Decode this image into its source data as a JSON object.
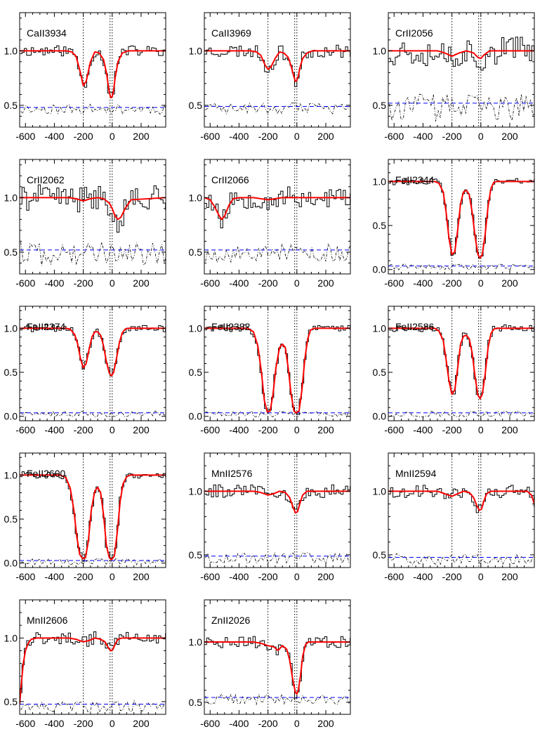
{
  "figure": {
    "colors": {
      "model": "#ff0000",
      "data": "#000000",
      "error": "#000000",
      "continuum": "#0000ff",
      "components": "#000000"
    },
    "x_ticks": [
      -600,
      -400,
      -200,
      0,
      200
    ],
    "x_tick_labels": [
      "-600",
      "-400",
      "-200",
      "0",
      "200"
    ],
    "xlim": [
      -640,
      370
    ]
  },
  "chart_data": [
    {
      "type": "line",
      "title": "CaII3934",
      "xlim": [
        -640,
        370
      ],
      "ylim": [
        0.3,
        1.35
      ],
      "y_ticks": [
        0.5,
        1.0
      ],
      "y_tick_labels": [
        "0.5",
        "1.0"
      ],
      "components": [
        -200,
        -15,
        0
      ],
      "continuum_level": 0.48,
      "model": {
        "x": [
          -640,
          -320,
          -280,
          -250,
          -220,
          -200,
          -180,
          -150,
          -120,
          -90,
          -60,
          -40,
          -20,
          -10,
          0,
          10,
          20,
          40,
          70,
          110,
          370
        ],
        "y": [
          1.0,
          1.0,
          0.99,
          0.95,
          0.8,
          0.68,
          0.72,
          0.9,
          0.99,
          0.98,
          0.92,
          0.8,
          0.62,
          0.57,
          0.58,
          0.64,
          0.75,
          0.9,
          0.98,
          1.0,
          1.0
        ]
      },
      "noise": {
        "level": 1.0,
        "amp": 0.05,
        "seed": 11,
        "step": 16
      }
    },
    {
      "type": "line",
      "title": "CaII3969",
      "xlim": [
        -640,
        370
      ],
      "ylim": [
        0.3,
        1.35
      ],
      "y_ticks": [
        0.5,
        1.0
      ],
      "y_tick_labels": [
        "0.5",
        "1.0"
      ],
      "components": [
        -200,
        -15,
        0
      ],
      "continuum_level": 0.49,
      "model": {
        "x": [
          -640,
          -320,
          -280,
          -250,
          -220,
          -200,
          -180,
          -150,
          -120,
          -90,
          -60,
          -40,
          -20,
          -10,
          0,
          10,
          20,
          40,
          70,
          110,
          370
        ],
        "y": [
          1.0,
          1.0,
          0.99,
          0.96,
          0.87,
          0.83,
          0.85,
          0.93,
          0.99,
          0.98,
          0.94,
          0.86,
          0.76,
          0.72,
          0.73,
          0.77,
          0.84,
          0.93,
          0.98,
          1.0,
          1.0
        ]
      },
      "noise": {
        "level": 1.0,
        "amp": 0.06,
        "seed": 23,
        "step": 16
      }
    },
    {
      "type": "line",
      "title": "CrII2056",
      "xlim": [
        -640,
        370
      ],
      "ylim": [
        0.3,
        1.35
      ],
      "y_ticks": [
        0.5,
        1.0
      ],
      "y_tick_labels": [
        "0.5",
        "1.0"
      ],
      "components": [
        -200,
        -15,
        0
      ],
      "continuum_level": 0.52,
      "model": {
        "x": [
          -640,
          -300,
          -250,
          -200,
          -150,
          -100,
          -50,
          -20,
          0,
          20,
          60,
          370
        ],
        "y": [
          1.0,
          1.0,
          0.98,
          0.95,
          0.98,
          1.0,
          0.98,
          0.94,
          0.93,
          0.96,
          1.0,
          1.0
        ]
      },
      "noise": {
        "level": 1.0,
        "amp": 0.14,
        "seed": 37,
        "step": 16
      }
    },
    {
      "type": "line",
      "title": "CrII2062",
      "xlim": [
        -640,
        370
      ],
      "ylim": [
        0.3,
        1.35
      ],
      "y_ticks": [
        0.5,
        1.0
      ],
      "y_tick_labels": [
        "0.5",
        "1.0"
      ],
      "components": [
        -200,
        -15,
        0
      ],
      "continuum_level": 0.52,
      "model": {
        "x": [
          -640,
          -300,
          -250,
          -200,
          -150,
          -100,
          -60,
          -20,
          0,
          20,
          40,
          60,
          90,
          130,
          370
        ],
        "y": [
          1.0,
          1.0,
          0.99,
          0.97,
          0.99,
          1.0,
          0.99,
          0.95,
          0.9,
          0.83,
          0.8,
          0.82,
          0.9,
          0.98,
          1.0
        ]
      },
      "noise": {
        "level": 1.0,
        "amp": 0.12,
        "seed": 41,
        "step": 16
      }
    },
    {
      "type": "line",
      "title": "CrII2066",
      "xlim": [
        -640,
        370
      ],
      "ylim": [
        0.3,
        1.35
      ],
      "y_ticks": [
        0.5,
        1.0
      ],
      "y_tick_labels": [
        "0.5",
        "1.0"
      ],
      "components": [
        -200,
        -15,
        0
      ],
      "continuum_level": 0.52,
      "model": {
        "x": [
          -640,
          -600,
          -570,
          -540,
          -520,
          -500,
          -470,
          -440,
          -400,
          -300,
          -250,
          -200,
          -150,
          -100,
          370
        ],
        "y": [
          1.0,
          0.98,
          0.92,
          0.84,
          0.8,
          0.83,
          0.93,
          0.99,
          1.0,
          1.0,
          0.99,
          0.98,
          0.99,
          1.0,
          1.0
        ]
      },
      "noise": {
        "level": 1.0,
        "amp": 0.1,
        "seed": 53,
        "step": 16
      }
    },
    {
      "type": "line",
      "title": "FeII2344",
      "xlim": [
        -640,
        370
      ],
      "ylim": [
        -0.05,
        1.25
      ],
      "y_ticks": [
        0.0,
        0.5,
        1.0
      ],
      "y_tick_labels": [
        "0.0",
        "0.5",
        "1.0"
      ],
      "components": [
        -200,
        -15,
        0
      ],
      "continuum_level": 0.04,
      "model": {
        "x": [
          -640,
          -320,
          -290,
          -260,
          -240,
          -220,
          -200,
          -180,
          -160,
          -140,
          -120,
          -100,
          -80,
          -60,
          -40,
          -20,
          -5,
          10,
          30,
          50,
          70,
          90,
          110,
          370
        ],
        "y": [
          1.0,
          1.0,
          0.98,
          0.88,
          0.65,
          0.35,
          0.17,
          0.2,
          0.45,
          0.75,
          0.88,
          0.9,
          0.85,
          0.65,
          0.38,
          0.17,
          0.13,
          0.17,
          0.4,
          0.72,
          0.92,
          0.99,
          1.0,
          1.0
        ]
      },
      "noise": {
        "level": 1.0,
        "amp": 0.04,
        "seed": 61,
        "step": 16
      }
    },
    {
      "type": "line",
      "title": "FeII2374",
      "xlim": [
        -640,
        370
      ],
      "ylim": [
        -0.05,
        1.25
      ],
      "y_ticks": [
        0.0,
        0.5,
        1.0
      ],
      "y_tick_labels": [
        "0.0",
        "0.5",
        "1.0"
      ],
      "components": [
        -200,
        -15,
        0
      ],
      "continuum_level": 0.04,
      "model": {
        "x": [
          -640,
          -320,
          -290,
          -260,
          -240,
          -220,
          -200,
          -180,
          -160,
          -140,
          -120,
          -100,
          -80,
          -60,
          -40,
          -20,
          -5,
          10,
          30,
          50,
          70,
          90,
          110,
          370
        ],
        "y": [
          1.0,
          1.0,
          0.99,
          0.93,
          0.83,
          0.66,
          0.55,
          0.6,
          0.76,
          0.9,
          0.96,
          0.96,
          0.92,
          0.8,
          0.62,
          0.49,
          0.46,
          0.5,
          0.66,
          0.84,
          0.95,
          0.99,
          1.0,
          1.0
        ]
      },
      "noise": {
        "level": 1.0,
        "amp": 0.04,
        "seed": 71,
        "step": 16
      }
    },
    {
      "type": "line",
      "title": "FeII2382",
      "xlim": [
        -640,
        370
      ],
      "ylim": [
        -0.05,
        1.25
      ],
      "y_ticks": [
        0.0,
        0.5,
        1.0
      ],
      "y_tick_labels": [
        "0.0",
        "0.5",
        "1.0"
      ],
      "components": [
        -200,
        -15,
        0
      ],
      "continuum_level": 0.04,
      "model": {
        "x": [
          -640,
          -340,
          -300,
          -270,
          -245,
          -225,
          -205,
          -185,
          -165,
          -145,
          -120,
          -100,
          -80,
          -60,
          -40,
          -20,
          -5,
          15,
          35,
          55,
          75,
          95,
          120,
          370
        ],
        "y": [
          1.0,
          1.0,
          0.96,
          0.8,
          0.5,
          0.18,
          0.05,
          0.06,
          0.25,
          0.55,
          0.78,
          0.82,
          0.78,
          0.55,
          0.25,
          0.06,
          0.04,
          0.06,
          0.3,
          0.65,
          0.88,
          0.98,
          1.0,
          1.0
        ]
      },
      "noise": {
        "level": 1.0,
        "amp": 0.04,
        "seed": 83,
        "step": 16
      }
    },
    {
      "type": "line",
      "title": "FeII2586",
      "xlim": [
        -640,
        370
      ],
      "ylim": [
        -0.05,
        1.25
      ],
      "y_ticks": [
        0.0,
        0.5,
        1.0
      ],
      "y_tick_labels": [
        "0.0",
        "0.5",
        "1.0"
      ],
      "components": [
        -200,
        -15,
        0
      ],
      "continuum_level": 0.04,
      "model": {
        "x": [
          -640,
          -320,
          -290,
          -260,
          -240,
          -220,
          -200,
          -180,
          -160,
          -140,
          -120,
          -100,
          -80,
          -60,
          -40,
          -20,
          -5,
          10,
          30,
          50,
          70,
          90,
          110,
          370
        ],
        "y": [
          1.0,
          1.0,
          0.97,
          0.86,
          0.64,
          0.4,
          0.25,
          0.3,
          0.55,
          0.82,
          0.91,
          0.92,
          0.88,
          0.72,
          0.45,
          0.24,
          0.2,
          0.25,
          0.48,
          0.78,
          0.94,
          0.99,
          1.0,
          1.0
        ]
      },
      "noise": {
        "level": 1.0,
        "amp": 0.04,
        "seed": 97,
        "step": 16
      }
    },
    {
      "type": "line",
      "title": "FeII2600",
      "xlim": [
        -640,
        370
      ],
      "ylim": [
        -0.05,
        1.25
      ],
      "y_ticks": [
        0.0,
        0.5,
        1.0
      ],
      "y_tick_labels": [
        "0.0",
        "0.5",
        "1.0"
      ],
      "components": [
        -200,
        -15,
        0
      ],
      "continuum_level": 0.03,
      "model": {
        "x": [
          -640,
          -360,
          -320,
          -290,
          -265,
          -245,
          -225,
          -205,
          -185,
          -165,
          -145,
          -120,
          -100,
          -80,
          -60,
          -40,
          -20,
          -5,
          15,
          35,
          55,
          75,
          100,
          125,
          150,
          370
        ],
        "y": [
          1.0,
          1.0,
          0.97,
          0.85,
          0.6,
          0.3,
          0.1,
          0.05,
          0.06,
          0.25,
          0.6,
          0.82,
          0.86,
          0.8,
          0.55,
          0.2,
          0.06,
          0.04,
          0.08,
          0.35,
          0.7,
          0.9,
          0.98,
          1.0,
          1.0,
          1.0
        ]
      },
      "noise": {
        "level": 1.0,
        "amp": 0.04,
        "seed": 101,
        "step": 16
      }
    },
    {
      "type": "line",
      "title": "MnII2576",
      "xlim": [
        -640,
        370
      ],
      "ylim": [
        0.4,
        1.3
      ],
      "y_ticks": [
        0.5,
        1.0
      ],
      "y_tick_labels": [
        "0.5",
        "1.0"
      ],
      "components": [
        -200,
        -15,
        0
      ],
      "continuum_level": 0.49,
      "model": {
        "x": [
          -640,
          -300,
          -250,
          -200,
          -160,
          -120,
          -80,
          -50,
          -25,
          -10,
          5,
          20,
          40,
          70,
          100,
          370
        ],
        "y": [
          1.0,
          1.0,
          0.99,
          0.97,
          0.98,
          1.0,
          0.99,
          0.95,
          0.87,
          0.83,
          0.84,
          0.9,
          0.97,
          1.0,
          1.0,
          1.0
        ]
      },
      "noise": {
        "level": 1.0,
        "amp": 0.05,
        "seed": 113,
        "step": 16
      }
    },
    {
      "type": "line",
      "title": "MnII2594",
      "xlim": [
        -640,
        370
      ],
      "ylim": [
        0.4,
        1.3
      ],
      "y_ticks": [
        0.5,
        1.0
      ],
      "y_tick_labels": [
        "0.5",
        "1.0"
      ],
      "components": [
        -200,
        -15,
        0
      ],
      "continuum_level": 0.48,
      "model": {
        "x": [
          -640,
          -300,
          -250,
          -200,
          -160,
          -120,
          -80,
          -50,
          -25,
          -10,
          5,
          20,
          40,
          70,
          100,
          320,
          350,
          370
        ],
        "y": [
          1.0,
          1.0,
          0.98,
          0.96,
          0.98,
          1.0,
          0.99,
          0.95,
          0.88,
          0.85,
          0.86,
          0.92,
          0.98,
          1.0,
          1.0,
          1.0,
          0.97,
          0.9
        ]
      },
      "noise": {
        "level": 1.0,
        "amp": 0.05,
        "seed": 127,
        "step": 16
      }
    },
    {
      "type": "line",
      "title": "MnII2606",
      "xlim": [
        -640,
        370
      ],
      "ylim": [
        0.4,
        1.3
      ],
      "y_ticks": [
        0.5,
        1.0
      ],
      "y_tick_labels": [
        "0.5",
        "1.0"
      ],
      "components": [
        -200,
        -15,
        0
      ],
      "continuum_level": 0.48,
      "model": {
        "x": [
          -640,
          -630,
          -615,
          -600,
          -580,
          -560,
          -520,
          -300,
          -250,
          -200,
          -160,
          -120,
          -80,
          -50,
          -25,
          -10,
          5,
          20,
          40,
          70,
          100,
          370
        ],
        "y": [
          0.48,
          0.62,
          0.8,
          0.9,
          0.96,
          0.99,
          1.0,
          1.0,
          0.99,
          0.97,
          0.98,
          1.0,
          0.99,
          0.97,
          0.92,
          0.9,
          0.91,
          0.95,
          0.99,
          1.0,
          1.0,
          1.0
        ]
      },
      "noise": {
        "level": 1.0,
        "amp": 0.05,
        "seed": 131,
        "step": 16
      }
    },
    {
      "type": "line",
      "title": "ZnII2026",
      "xlim": [
        -640,
        370
      ],
      "ylim": [
        0.4,
        1.35
      ],
      "y_ticks": [
        0.5,
        1.0
      ],
      "y_tick_labels": [
        "0.5",
        "1.0"
      ],
      "components": [
        -200,
        -15,
        0
      ],
      "continuum_level": 0.54,
      "model": {
        "x": [
          -640,
          -300,
          -250,
          -200,
          -160,
          -130,
          -100,
          -70,
          -50,
          -30,
          -10,
          0,
          10,
          25,
          40,
          60,
          80,
          100,
          370
        ],
        "y": [
          1.0,
          1.0,
          0.99,
          0.97,
          0.96,
          0.93,
          0.97,
          0.94,
          0.85,
          0.7,
          0.58,
          0.57,
          0.6,
          0.72,
          0.88,
          0.98,
          1.0,
          1.0,
          1.0
        ]
      },
      "noise": {
        "level": 1.0,
        "amp": 0.05,
        "seed": 149,
        "step": 16
      }
    }
  ]
}
